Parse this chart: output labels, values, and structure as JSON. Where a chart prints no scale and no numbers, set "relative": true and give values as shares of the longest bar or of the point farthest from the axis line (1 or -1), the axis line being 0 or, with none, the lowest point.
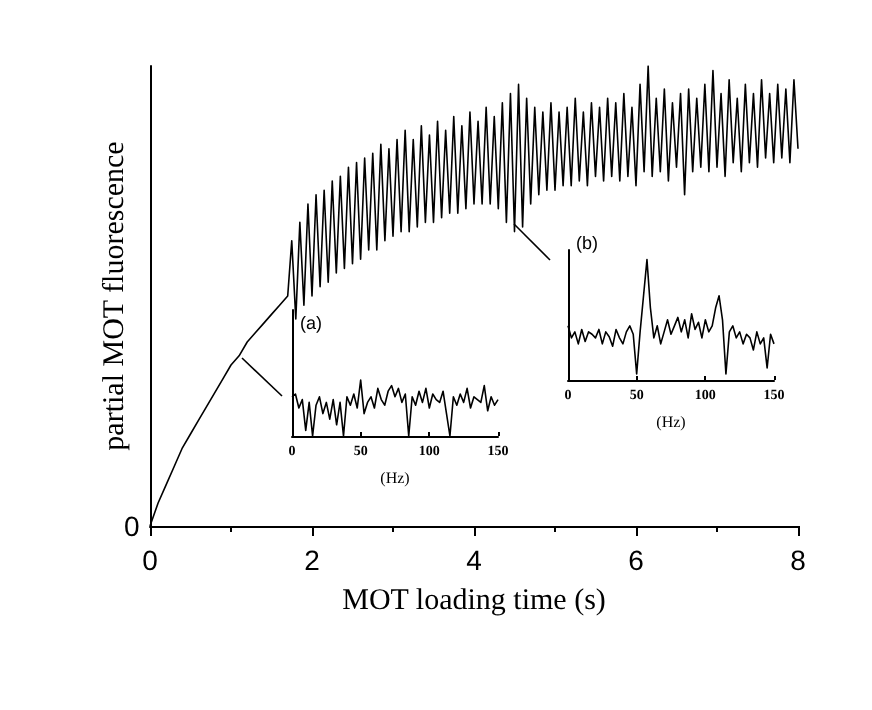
{
  "chart_data": [
    {
      "type": "line",
      "xlabel": "MOT loading time (s)",
      "ylabel": "partial MOT fluorescence",
      "relative": true,
      "color": "#000000",
      "xlim": [
        0,
        8
      ],
      "xticks": [
        0,
        2,
        4,
        6,
        8
      ],
      "annotations": [
        "0"
      ],
      "x": [
        0,
        0.1,
        0.2,
        0.3,
        0.4,
        0.5,
        0.6,
        0.7,
        0.8,
        0.9,
        1.0,
        1.1,
        1.2,
        1.3,
        1.4,
        1.5,
        1.6,
        1.7,
        1.75,
        1.8,
        1.85,
        1.9,
        1.95,
        2.0,
        2.05,
        2.1,
        2.15,
        2.2,
        2.25,
        2.3,
        2.35,
        2.4,
        2.45,
        2.5,
        2.55,
        2.6,
        2.65,
        2.7,
        2.75,
        2.8,
        2.85,
        2.9,
        2.95,
        3.0,
        3.05,
        3.1,
        3.15,
        3.2,
        3.25,
        3.3,
        3.35,
        3.4,
        3.45,
        3.5,
        3.55,
        3.6,
        3.65,
        3.7,
        3.75,
        3.8,
        3.85,
        3.9,
        3.95,
        4.0,
        4.05,
        4.1,
        4.15,
        4.2,
        4.25,
        4.3,
        4.35,
        4.4,
        4.45,
        4.5,
        4.55,
        4.6,
        4.65,
        4.7,
        4.75,
        4.8,
        4.85,
        4.9,
        4.95,
        5.0,
        5.05,
        5.1,
        5.15,
        5.2,
        5.25,
        5.3,
        5.35,
        5.4,
        5.45,
        5.5,
        5.55,
        5.6,
        5.65,
        5.7,
        5.75,
        5.8,
        5.85,
        5.9,
        5.95,
        6.0,
        6.05,
        6.1,
        6.15,
        6.2,
        6.25,
        6.3,
        6.35,
        6.4,
        6.45,
        6.5,
        6.55,
        6.6,
        6.65,
        6.7,
        6.75,
        6.8,
        6.85,
        6.9,
        6.95,
        7.0,
        7.05,
        7.1,
        7.15,
        7.2,
        7.25,
        7.3,
        7.35,
        7.4,
        7.45,
        7.5,
        7.55,
        7.6,
        7.65,
        7.7,
        7.75,
        7.8,
        7.85,
        7.9,
        7.95,
        8.0
      ],
      "values": [
        0,
        0.05,
        0.09,
        0.13,
        0.17,
        0.2,
        0.23,
        0.26,
        0.29,
        0.32,
        0.35,
        0.37,
        0.4,
        0.42,
        0.44,
        0.46,
        0.48,
        0.5,
        0.62,
        0.45,
        0.66,
        0.48,
        0.7,
        0.5,
        0.72,
        0.52,
        0.73,
        0.53,
        0.75,
        0.55,
        0.76,
        0.56,
        0.78,
        0.57,
        0.79,
        0.58,
        0.8,
        0.6,
        0.81,
        0.6,
        0.83,
        0.62,
        0.82,
        0.63,
        0.84,
        0.64,
        0.86,
        0.64,
        0.84,
        0.65,
        0.87,
        0.66,
        0.85,
        0.66,
        0.88,
        0.67,
        0.86,
        0.68,
        0.89,
        0.68,
        0.87,
        0.69,
        0.9,
        0.7,
        0.88,
        0.7,
        0.91,
        0.7,
        0.89,
        0.69,
        0.92,
        0.66,
        0.94,
        0.64,
        0.96,
        0.65,
        0.93,
        0.7,
        0.91,
        0.72,
        0.9,
        0.73,
        0.92,
        0.73,
        0.9,
        0.74,
        0.91,
        0.74,
        0.93,
        0.75,
        0.9,
        0.74,
        0.92,
        0.76,
        0.91,
        0.75,
        0.93,
        0.76,
        0.92,
        0.75,
        0.94,
        0.76,
        0.91,
        0.74,
        0.96,
        0.77,
        1.0,
        0.76,
        0.93,
        0.77,
        0.95,
        0.75,
        0.92,
        0.78,
        0.94,
        0.72,
        0.95,
        0.77,
        0.93,
        0.78,
        0.96,
        0.77,
        0.99,
        0.78,
        0.94,
        0.76,
        0.97,
        0.79,
        0.93,
        0.77,
        0.96,
        0.79,
        0.94,
        0.78,
        0.97,
        0.8,
        0.94,
        0.79,
        0.96,
        0.8,
        0.95,
        0.79,
        0.97,
        0.82
      ]
    },
    {
      "type": "line",
      "xlabel": "(Hz)",
      "relative": true,
      "color": "#000000",
      "xlim": [
        0,
        150
      ],
      "xticks": [
        0,
        50,
        100,
        150
      ],
      "annotations": [
        "(a)"
      ],
      "x": [
        0,
        2.5,
        5,
        7.5,
        10,
        12.5,
        15,
        17.5,
        20,
        22.5,
        25,
        27.5,
        30,
        32.5,
        35,
        37.5,
        40,
        42.5,
        45,
        47.5,
        50,
        52.5,
        55,
        57.5,
        60,
        62.5,
        65,
        67.5,
        70,
        72.5,
        75,
        77.5,
        80,
        82.5,
        85,
        87.5,
        90,
        92.5,
        95,
        97.5,
        100,
        102.5,
        105,
        107.5,
        110,
        112.5,
        115,
        117.5,
        120,
        122.5,
        125,
        127.5,
        130,
        132.5,
        135,
        137.5,
        140,
        142.5,
        145,
        147.5,
        150
      ],
      "values": [
        0.7,
        0.75,
        0.5,
        0.65,
        0.1,
        0.6,
        0.0,
        0.55,
        0.7,
        0.4,
        0.6,
        0.3,
        0.65,
        0.2,
        0.6,
        0.0,
        0.7,
        0.55,
        0.75,
        0.5,
        1,
        0.4,
        0.6,
        0.7,
        0.5,
        0.85,
        0.65,
        0.55,
        0.8,
        0.9,
        0.7,
        0.85,
        0.6,
        0.75,
        0.0,
        0.7,
        0.55,
        0.8,
        0.6,
        0.85,
        0.5,
        0.75,
        0.65,
        0.6,
        0.8,
        0.4,
        0.0,
        0.7,
        0.55,
        0.75,
        0.6,
        0.85,
        0.5,
        0.7,
        0.65,
        0.6,
        0.9,
        0.45,
        0.7,
        0.55,
        0.65
      ]
    },
    {
      "type": "line",
      "xlabel": "(Hz)",
      "relative": true,
      "color": "#000000",
      "xlim": [
        0,
        150
      ],
      "xticks": [
        0,
        50,
        100,
        150
      ],
      "annotations": [
        "(b)"
      ],
      "x": [
        0,
        2.5,
        5,
        7.5,
        10,
        12.5,
        15,
        17.5,
        20,
        22.5,
        25,
        27.5,
        30,
        32.5,
        35,
        37.5,
        40,
        42.5,
        45,
        47.5,
        50,
        52.5,
        55,
        57.5,
        60,
        62.5,
        65,
        67.5,
        70,
        72.5,
        75,
        77.5,
        80,
        82.5,
        85,
        87.5,
        90,
        92.5,
        95,
        97.5,
        100,
        102.5,
        105,
        107.5,
        110,
        112.5,
        115,
        117.5,
        120,
        122.5,
        125,
        127.5,
        130,
        132.5,
        135,
        137.5,
        140,
        142.5,
        145,
        147.5,
        150
      ],
      "values": [
        0.45,
        0.35,
        0.4,
        0.3,
        0.42,
        0.32,
        0.4,
        0.38,
        0.35,
        0.42,
        0.3,
        0.4,
        0.36,
        0.28,
        0.42,
        0.35,
        0.3,
        0.4,
        0.45,
        0.38,
        0.05,
        0.4,
        0.7,
        1,
        0.6,
        0.35,
        0.45,
        0.3,
        0.4,
        0.5,
        0.38,
        0.45,
        0.52,
        0.4,
        0.5,
        0.35,
        0.55,
        0.42,
        0.48,
        0.35,
        0.5,
        0.4,
        0.45,
        0.6,
        0.7,
        0.5,
        0.05,
        0.4,
        0.45,
        0.35,
        0.4,
        0.3,
        0.38,
        0.35,
        0.25,
        0.4,
        0.3,
        0.35,
        0.1,
        0.38,
        0.3
      ]
    }
  ]
}
